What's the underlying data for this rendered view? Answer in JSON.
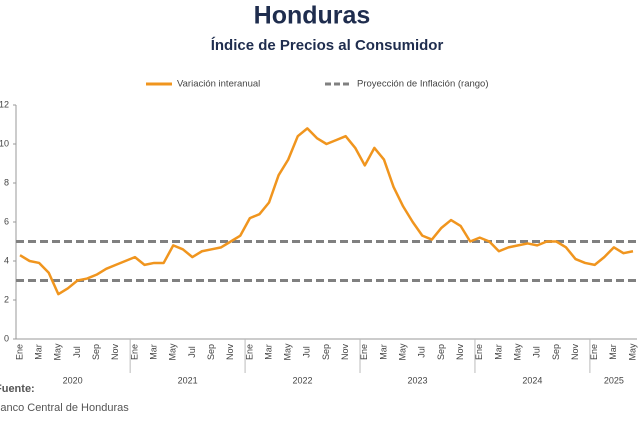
{
  "chart_data": {
    "type": "line",
    "title": "Honduras",
    "subtitle": "Índice de Precios al Consumidor",
    "categories": [
      "Ene",
      null,
      "Mar",
      null,
      "May",
      null,
      "Jul",
      null,
      "Sep",
      null,
      "Nov",
      null,
      "Ene",
      null,
      "Mar",
      null,
      "May",
      null,
      "Jul",
      null,
      "Sep",
      null,
      "Nov",
      null,
      "Ene",
      null,
      "Mar",
      null,
      "May",
      null,
      "Jul",
      null,
      "Sep",
      null,
      "Nov",
      null,
      "Ene",
      null,
      "Mar",
      null,
      "May",
      null,
      "Jul",
      null,
      "Sep",
      null,
      "Nov",
      null,
      "Ene",
      null,
      "Mar",
      null,
      "May",
      null,
      "Jul",
      null,
      "Sep",
      null,
      "Nov",
      null,
      "Ene",
      null,
      "Mar",
      null,
      "May"
    ],
    "years": [
      "2020",
      "2021",
      "2022",
      "2023",
      "2024",
      "2025"
    ],
    "series": [
      {
        "name": "Variación interanual",
        "color": "#f0951e",
        "values": [
          4.3,
          4.0,
          3.9,
          3.4,
          2.3,
          2.6,
          3.0,
          3.1,
          3.3,
          3.6,
          3.8,
          4.0,
          4.2,
          3.8,
          3.9,
          3.9,
          4.8,
          4.6,
          4.2,
          4.5,
          4.6,
          4.7,
          5.0,
          5.3,
          6.2,
          6.4,
          7.0,
          8.4,
          9.2,
          10.4,
          10.8,
          10.3,
          10.0,
          10.2,
          10.4,
          9.8,
          8.9,
          9.8,
          9.2,
          7.8,
          6.8,
          6.0,
          5.3,
          5.1,
          5.7,
          6.1,
          5.8,
          5.0,
          5.2,
          5.0,
          4.5,
          4.7,
          4.8,
          4.9,
          4.8,
          5.0,
          5.0,
          4.7,
          4.1,
          3.9,
          3.8,
          4.2,
          4.7,
          4.4,
          4.5
        ]
      }
    ],
    "reference_lines": {
      "name": "Proyección de Inflación (rango)",
      "color": "#808080",
      "values": [
        5,
        3
      ]
    },
    "ylim": [
      0,
      12
    ],
    "yticks": [
      0,
      2,
      4,
      6,
      8,
      10,
      12
    ],
    "source_label": "Fuente:",
    "source": "Banco Central de Honduras"
  }
}
